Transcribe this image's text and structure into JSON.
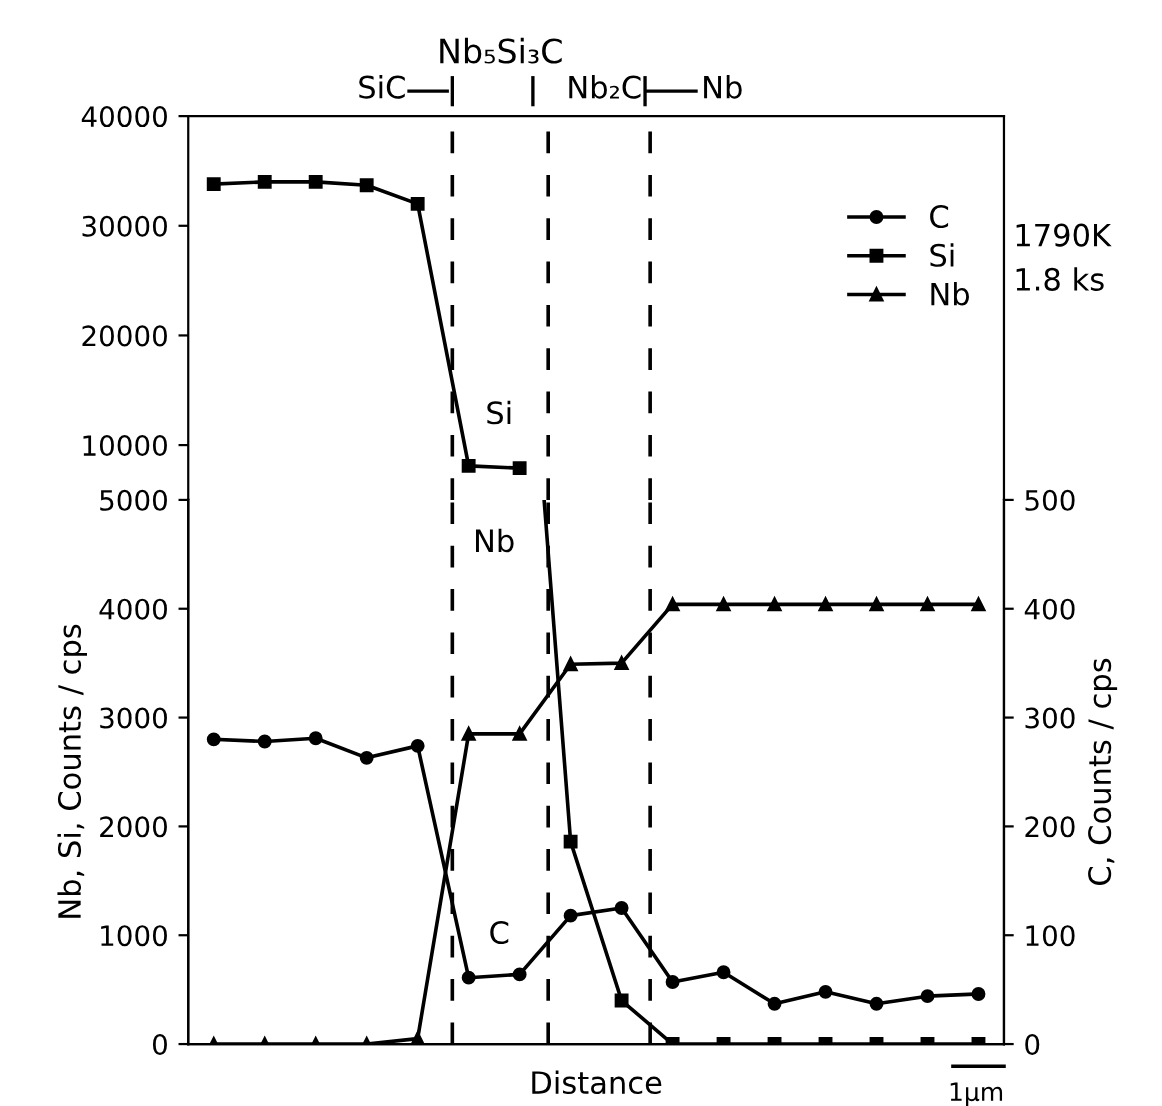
{
  "chart_data": [
    {
      "type": "line",
      "categories": [
        null,
        null,
        null,
        null,
        null,
        null,
        null,
        null,
        null,
        null,
        null,
        null,
        null,
        null,
        null,
        null
      ],
      "series": [
        {
          "name": "Si",
          "color": "#000000",
          "marker": "square",
          "values": [
            33800,
            34000,
            34000,
            33700,
            32000,
            8100,
            7900,
            null,
            null,
            null,
            null,
            null,
            null,
            null,
            null,
            null
          ]
        }
      ],
      "ylim": [
        5000,
        40000
      ],
      "yticks": [
        10000,
        20000,
        30000,
        40000
      ],
      "annotations": [
        "SiC",
        "Nb₅Si₃C",
        "Nb₂C",
        "Nb",
        "1790K",
        "1.8 ks"
      ],
      "grid": false,
      "line_style": "solid"
    },
    {
      "type": "line",
      "xlabel": "Distance",
      "ylabel": "Nb, Si, Counts / cps",
      "y2label": "C, Counts / cps",
      "categories": [
        null,
        null,
        null,
        null,
        null,
        null,
        null,
        null,
        null,
        null,
        null,
        null,
        null,
        null,
        null,
        null
      ],
      "series": [
        {
          "name": "C",
          "color": "#000000",
          "marker": "circle",
          "axis": "y2",
          "values": [
            280,
            278,
            281,
            263,
            274,
            61,
            64,
            118,
            125,
            57,
            66,
            37,
            48,
            37,
            44,
            46
          ]
        },
        {
          "name": "Si",
          "color": "#000000",
          "marker": "square",
          "values": [
            null,
            null,
            null,
            null,
            null,
            null,
            null,
            1860,
            400,
            0,
            0,
            0,
            0,
            0,
            0,
            0
          ]
        },
        {
          "name": "Nb",
          "color": "#000000",
          "marker": "triangle",
          "values": [
            0,
            0,
            0,
            0,
            50,
            2850,
            2850,
            3490,
            3500,
            4040,
            4040,
            4040,
            4040,
            4040,
            4040,
            4040
          ]
        }
      ],
      "ylim": [
        0,
        5000
      ],
      "yticks": [
        0,
        1000,
        2000,
        3000,
        4000,
        5000
      ],
      "y2lim": [
        0,
        500
      ],
      "y2ticks": [
        0,
        100,
        200,
        300,
        400,
        500
      ],
      "annotations": [
        "1μm"
      ],
      "legend": "top right",
      "grid": false,
      "line_style": "solid"
    }
  ]
}
